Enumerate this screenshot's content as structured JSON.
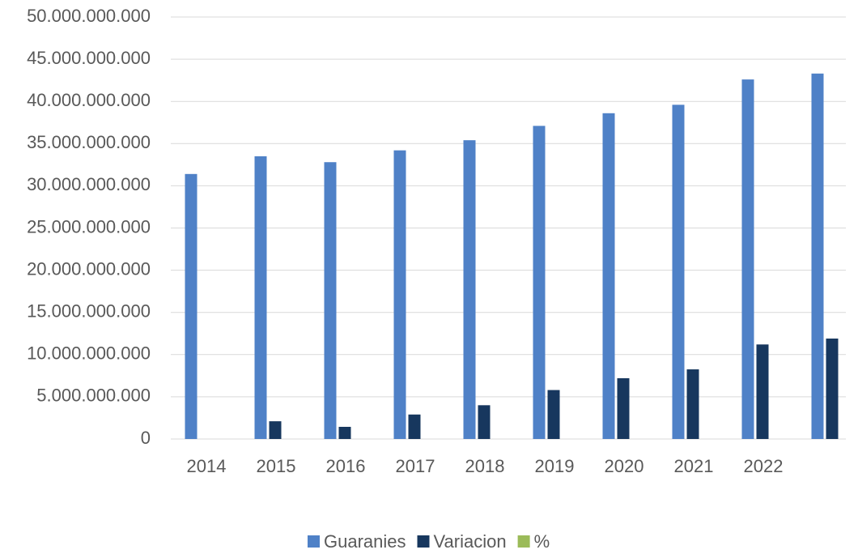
{
  "chart_data": {
    "type": "bar",
    "categories": [
      "2014",
      "2015",
      "2016",
      "2017",
      "2018",
      "2019",
      "2020",
      "2021",
      "2022",
      null
    ],
    "series": [
      {
        "name": "Guaranies",
        "color": "#4f81c7",
        "values": [
          31400000000,
          33500000000,
          32800000000,
          34200000000,
          35400000000,
          37100000000,
          38600000000,
          39600000000,
          42600000000,
          43300000000
        ]
      },
      {
        "name": "Variacion",
        "color": "#17375e",
        "values": [
          null,
          2100000000,
          1440000000,
          2900000000,
          4000000000,
          5800000000,
          7200000000,
          8250000000,
          11200000000,
          11900000000
        ]
      },
      {
        "name": "%",
        "color": "#9bbb59",
        "values": [
          null,
          null,
          null,
          null,
          null,
          null,
          null,
          null,
          null,
          null
        ]
      }
    ],
    "ylim": [
      0,
      50000000000
    ],
    "yticks": [
      0,
      {
        "value": 5000000000,
        "label": "5.000.000.000"
      },
      {
        "value": 10000000000,
        "label": "10.000.000.000"
      },
      {
        "value": 15000000000,
        "label": "15.000.000.000"
      },
      {
        "value": 20000000000,
        "label": "20.000.000.000"
      },
      {
        "value": 25000000000,
        "label": "25.000.000.000"
      },
      {
        "value": 30000000000,
        "label": "30.000.000.000"
      },
      {
        "value": 35000000000,
        "label": "35.000.000.000"
      },
      {
        "value": 40000000000,
        "label": "40.000.000.000"
      },
      {
        "value": 45000000000,
        "label": "45.000.000.000"
      },
      {
        "value": 50000000000,
        "label": "50.000.000.000"
      }
    ],
    "grid": true,
    "legend": "bottom"
  }
}
